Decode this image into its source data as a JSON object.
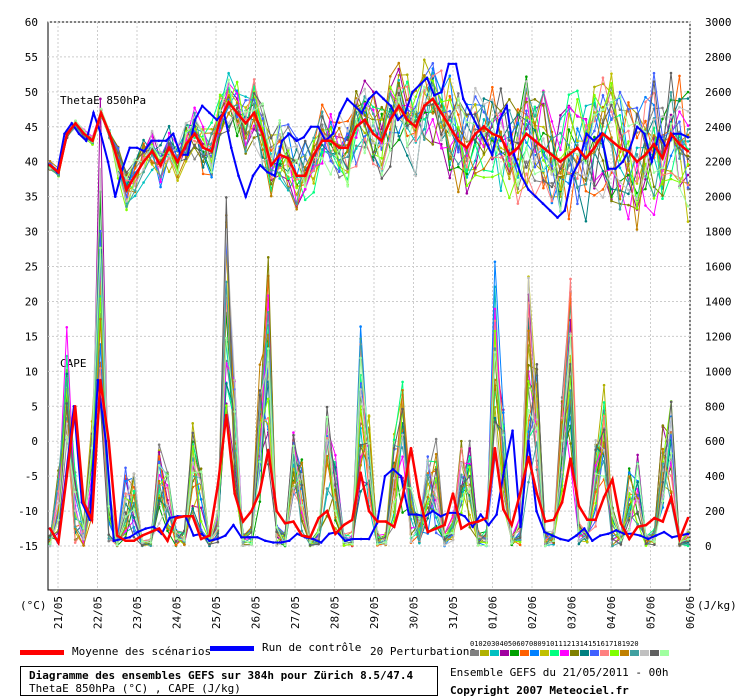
{
  "chart_data": {
    "type": "line",
    "left_axis": {
      "label": "(°C)",
      "ticks": [
        60,
        55,
        50,
        45,
        40,
        35,
        30,
        25,
        20,
        15,
        10,
        5,
        0,
        -5,
        -10,
        -15
      ]
    },
    "right_axis": {
      "label": "(J/kg)",
      "ticks": [
        3000,
        2800,
        2600,
        2400,
        2200,
        2000,
        1800,
        1600,
        1400,
        1200,
        1000,
        800,
        600,
        400,
        200,
        0
      ]
    },
    "x_ticks": [
      "21/05",
      "22/05",
      "23/05",
      "24/05",
      "25/05",
      "26/05",
      "27/05",
      "28/05",
      "29/05",
      "30/05",
      "31/05",
      "01/06",
      "02/06",
      "03/06",
      "04/06",
      "05/06",
      "06/06"
    ],
    "panel_labels": {
      "thetae": "ThetaE 850hPa",
      "cape": "CAPE"
    },
    "thetae_mean": [
      39.5,
      38.5,
      44,
      45.5,
      44,
      43,
      47,
      44,
      40,
      36,
      38,
      40,
      41.5,
      39.5,
      42,
      40,
      42.5,
      44,
      42,
      41.5,
      46,
      48.5,
      47,
      45.5,
      47,
      44,
      39.5,
      41,
      40.5,
      38,
      38,
      41,
      43,
      43,
      42,
      42,
      45,
      46,
      44,
      43,
      46,
      48,
      46,
      45,
      48,
      49,
      47,
      45,
      43,
      42,
      44,
      45,
      44,
      43.5,
      41,
      42,
      44,
      43,
      42,
      41,
      40,
      41,
      42,
      40.5,
      42,
      44,
      43,
      42,
      41.5,
      40,
      41,
      42.5,
      40.5,
      44,
      42.5,
      41.5
    ],
    "thetae_control": [
      39.5,
      38.5,
      44,
      45.5,
      44,
      43,
      47,
      44,
      40,
      35,
      39,
      42,
      42,
      41.5,
      43,
      43,
      43,
      44,
      41,
      41,
      46,
      48,
      47,
      46,
      47,
      42,
      38,
      35,
      38,
      39.5,
      38.5,
      38,
      43,
      44,
      43,
      43.5,
      45,
      45,
      43,
      44,
      47,
      49,
      48,
      47,
      49,
      50,
      49,
      48,
      46,
      47,
      50,
      51,
      52,
      49.5,
      50,
      54,
      54,
      49,
      47,
      45,
      43,
      41,
      46,
      48,
      41,
      38,
      36,
      35,
      34,
      33,
      32,
      33,
      38,
      40,
      44,
      43,
      44,
      39,
      39,
      40,
      42,
      45,
      44,
      40,
      44,
      42,
      44,
      44,
      43.5
    ],
    "cape_mean": [
      100,
      20,
      400,
      800,
      250,
      150,
      950,
      600,
      60,
      30,
      30,
      60,
      80,
      100,
      30,
      160,
      170,
      170,
      40,
      60,
      350,
      750,
      300,
      140,
      200,
      310,
      550,
      200,
      130,
      140,
      60,
      50,
      160,
      200,
      70,
      120,
      150,
      420,
      200,
      140,
      140,
      110,
      280,
      560,
      280,
      80,
      100,
      120,
      300,
      100,
      130,
      140,
      160,
      560,
      210,
      120,
      300,
      510,
      300,
      140,
      150,
      250,
      500,
      230,
      150,
      150,
      280,
      380,
      130,
      40,
      110,
      120,
      160,
      140,
      280,
      40,
      160
    ],
    "cape_control": [
      100,
      20,
      400,
      800,
      250,
      150,
      950,
      600,
      30,
      40,
      50,
      80,
      100,
      110,
      70,
      160,
      170,
      170,
      60,
      70,
      30,
      40,
      60,
      120,
      50,
      50,
      50,
      30,
      20,
      20,
      30,
      70,
      50,
      40,
      20,
      70,
      80,
      30,
      40,
      40,
      40,
      130,
      400,
      440,
      400,
      180,
      180,
      170,
      200,
      170,
      190,
      190,
      170,
      110,
      180,
      120,
      180,
      450,
      660,
      110,
      600,
      200,
      80,
      60,
      40,
      30,
      60,
      100,
      30,
      60,
      70,
      90,
      70,
      70,
      60,
      40,
      60,
      80,
      50,
      60,
      70
    ],
    "series_legend": [
      {
        "name": "Moyenne des scénarios",
        "color": "#ff0000"
      },
      {
        "name": "Run de contrôle",
        "color": "#0000ff"
      },
      {
        "name": "20 Perturbations",
        "color": "#888888"
      }
    ],
    "perturbation_ids": [
      "01",
      "02",
      "03",
      "04",
      "05",
      "06",
      "07",
      "08",
      "09",
      "10",
      "11",
      "12",
      "13",
      "14",
      "15",
      "16",
      "17",
      "18",
      "19",
      "20"
    ],
    "perturbation_colors": [
      "#808080",
      "#b0b000",
      "#00c0c0",
      "#a000a0",
      "#00a000",
      "#ff6000",
      "#0080ff",
      "#c0c000",
      "#00ff80",
      "#ff00ff",
      "#808000",
      "#008080",
      "#4060ff",
      "#ff8080",
      "#80ff00",
      "#c08000",
      "#40a0a0",
      "#c0c0c0",
      "#606060",
      "#a0ffa0"
    ]
  },
  "title": "Diagramme des ensembles GEFS sur 384h pour Zürich 8.5/47.4",
  "subtitle": "ThetaE 850hPa (°C) , CAPE (J/kg)",
  "ensemble_info": "Ensemble GEFS du 21/05/2011 - 00h",
  "copyright": "Copyright 2007 Meteociel.fr"
}
